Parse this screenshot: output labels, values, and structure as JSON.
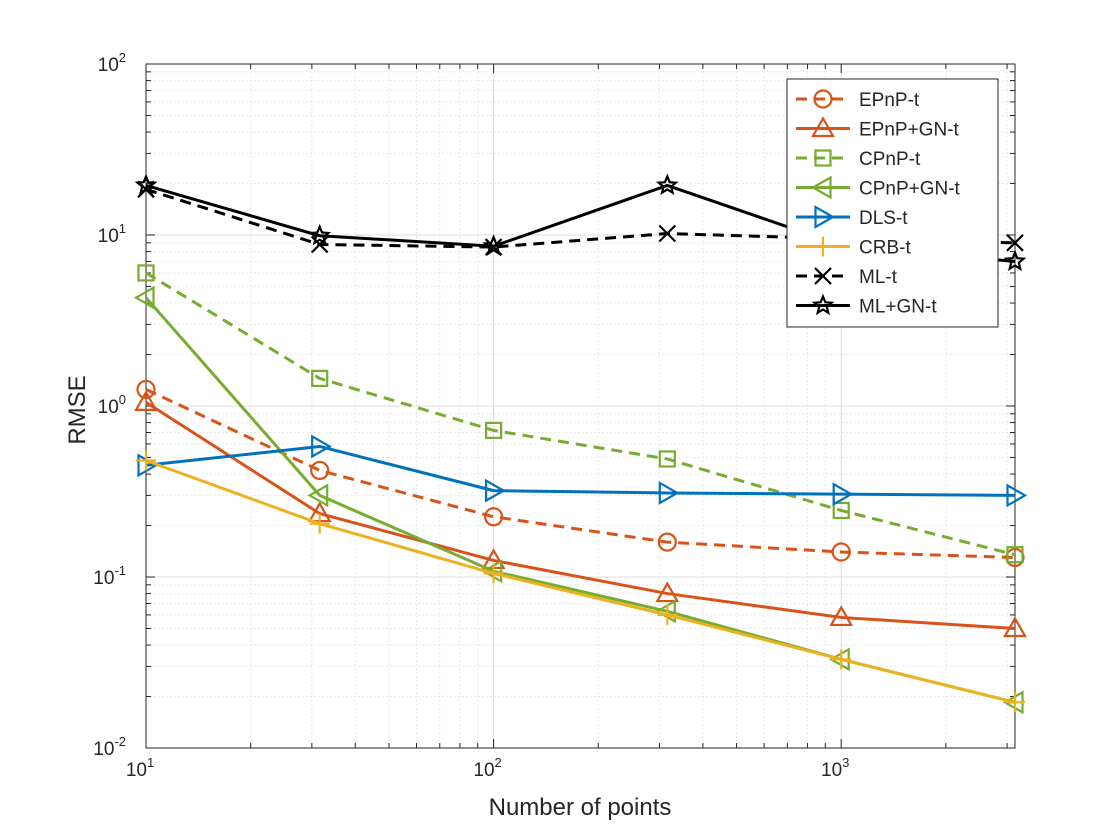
{
  "chart_data": {
    "type": "line",
    "title": "",
    "xlabel": "Number of points",
    "ylabel": "RMSE",
    "xscale": "log",
    "yscale": "log",
    "xlim": [
      10,
      3162
    ],
    "ylim": [
      0.01,
      100
    ],
    "grid": true,
    "legend_position": "top-right",
    "x": [
      10,
      31.6,
      100,
      316,
      1000,
      3162
    ],
    "x_ticks": [
      {
        "value": 10,
        "base": "10",
        "exp": "1"
      },
      {
        "value": 100,
        "base": "10",
        "exp": "2"
      },
      {
        "value": 1000,
        "base": "10",
        "exp": "3"
      }
    ],
    "y_ticks": [
      {
        "value": 0.01,
        "base": "10",
        "exp": "-2"
      },
      {
        "value": 0.1,
        "base": "10",
        "exp": "-1"
      },
      {
        "value": 1,
        "base": "10",
        "exp": "0"
      },
      {
        "value": 10,
        "base": "10",
        "exp": "1"
      },
      {
        "value": 100,
        "base": "10",
        "exp": "2"
      }
    ],
    "series": [
      {
        "name": "EPnP-t",
        "color": "#D95319",
        "dash": "dashed",
        "marker": "circle",
        "values": [
          1.25,
          0.42,
          0.225,
          0.16,
          0.14,
          0.13
        ]
      },
      {
        "name": "EPnP+GN-t",
        "color": "#D95319",
        "dash": "solid",
        "marker": "triangle-up",
        "values": [
          1.05,
          0.235,
          0.125,
          0.08,
          0.058,
          0.05
        ]
      },
      {
        "name": "CPnP-t",
        "color": "#77AC30",
        "dash": "dashed",
        "marker": "square",
        "values": [
          6.0,
          1.45,
          0.72,
          0.49,
          0.245,
          0.135
        ]
      },
      {
        "name": "CPnP+GN-t",
        "color": "#77AC30",
        "dash": "solid",
        "marker": "triangle-left",
        "values": [
          4.3,
          0.3,
          0.108,
          0.063,
          0.033,
          0.0185
        ]
      },
      {
        "name": "DLS-t",
        "color": "#0072BD",
        "dash": "solid",
        "marker": "triangle-right",
        "values": [
          0.45,
          0.58,
          0.32,
          0.31,
          0.305,
          0.3
        ]
      },
      {
        "name": "CRB-t",
        "color": "#EDB120",
        "dash": "solid",
        "marker": "plus",
        "values": [
          0.48,
          0.205,
          0.105,
          0.06,
          0.033,
          0.0185
        ]
      },
      {
        "name": "ML-t",
        "color": "#000000",
        "dash": "dashed",
        "marker": "x",
        "values": [
          18.5,
          8.8,
          8.5,
          10.2,
          9.5,
          9.0
        ]
      },
      {
        "name": "ML+GN-t",
        "color": "#000000",
        "dash": "solid",
        "marker": "star",
        "values": [
          19.5,
          9.9,
          8.6,
          19.5,
          8.7,
          7.0
        ]
      }
    ]
  }
}
